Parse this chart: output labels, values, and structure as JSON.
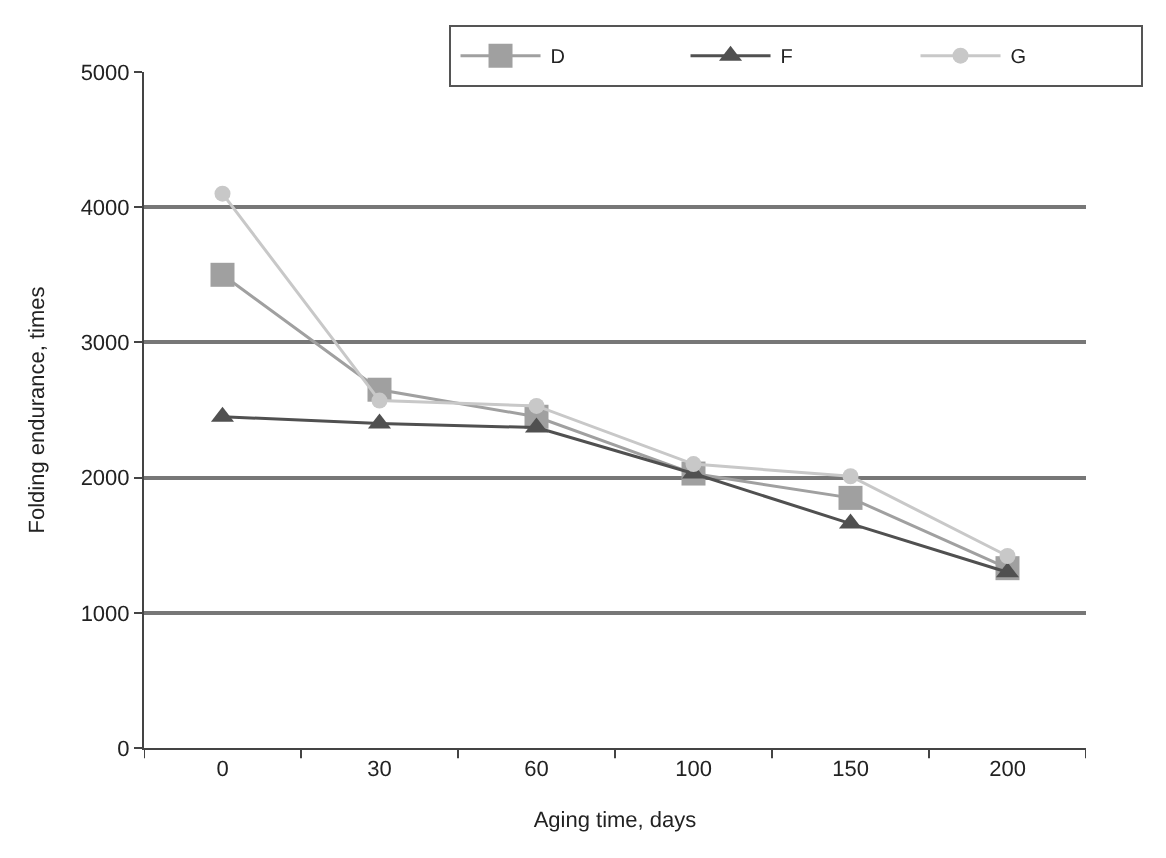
{
  "chart_data": {
    "type": "line",
    "xlabel": "Aging time, days",
    "ylabel": "Folding endurance, times",
    "categories": [
      "0",
      "30",
      "60",
      "100",
      "150",
      "200"
    ],
    "series": [
      {
        "name": "D",
        "color": "#a0a0a0",
        "marker": "square",
        "values": [
          3500,
          2650,
          2450,
          2030,
          1850,
          1330
        ]
      },
      {
        "name": "F",
        "color": "#505050",
        "marker": "triangle",
        "values": [
          2450,
          2400,
          2370,
          2030,
          1660,
          1300
        ]
      },
      {
        "name": "G",
        "color": "#c8c8c8",
        "marker": "circle",
        "values": [
          4100,
          2570,
          2530,
          2100,
          2010,
          1420
        ]
      }
    ],
    "ylim": [
      0,
      5000
    ],
    "yticks": [
      0,
      1000,
      2000,
      3000,
      4000,
      5000
    ],
    "grid": "y",
    "legend": "top right",
    "line_style": "solid"
  }
}
